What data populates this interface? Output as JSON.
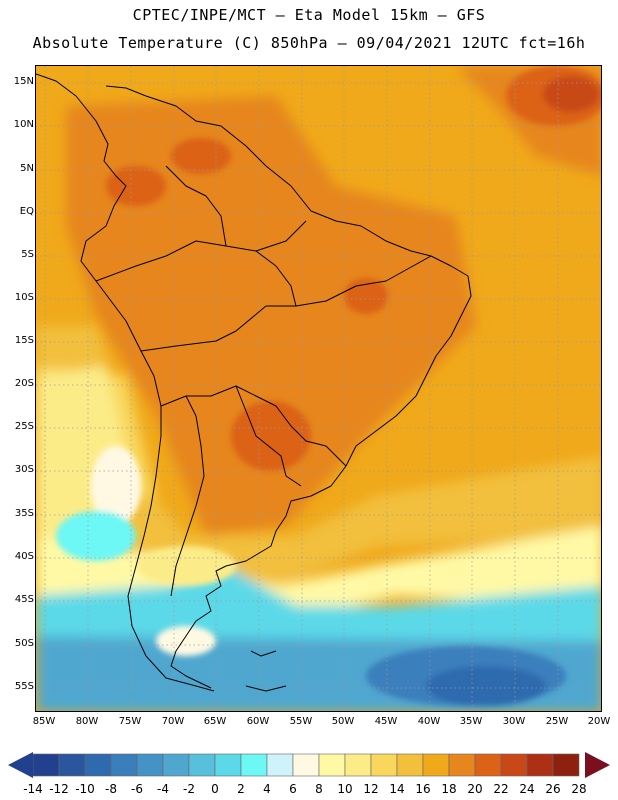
{
  "title": {
    "line1": "CPTEC/INPE/MCT –  Eta Model 15km – GFS",
    "line2": "Absolute Temperature (C) 850hPa – 09/04/2021 12UTC fct=16h"
  },
  "map": {
    "lat_labels": [
      "15N",
      "10N",
      "5N",
      "EQ",
      "5S",
      "10S",
      "15S",
      "20S",
      "25S",
      "30S",
      "35S",
      "40S",
      "45S",
      "50S",
      "55S"
    ],
    "lon_labels": [
      "85W",
      "80W",
      "75W",
      "70W",
      "65W",
      "60W",
      "55W",
      "50W",
      "45W",
      "40W",
      "35W",
      "30W",
      "25W",
      "20W"
    ]
  },
  "colorbar": {
    "labels": [
      "-14",
      "-12",
      "-10",
      "-8",
      "-6",
      "-4",
      "-2",
      "0",
      "2",
      "4",
      "6",
      "8",
      "10",
      "12",
      "14",
      "16",
      "18",
      "20",
      "22",
      "24",
      "26",
      "28"
    ],
    "colors": [
      "#21418f",
      "#2a56a0",
      "#2f6aae",
      "#3a7fbc",
      "#4593c6",
      "#4fa7cf",
      "#58bfdd",
      "#5cd9e8",
      "#6df7f5",
      "#cff3fb",
      "#fff9e4",
      "#fff9a6",
      "#fcec88",
      "#f8d75c",
      "#f2c03c",
      "#f0a91a",
      "#e6861c",
      "#dc6217",
      "#c84818",
      "#ad3014",
      "#8e2010"
    ]
  }
}
